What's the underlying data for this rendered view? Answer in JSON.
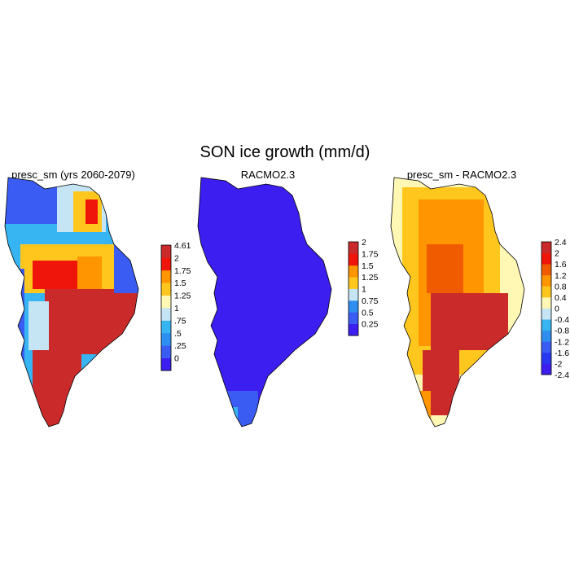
{
  "figure": {
    "title": "SON ice growth (mm/d)"
  },
  "panels": [
    {
      "title": "presc_sm (yrs 2060-2079)",
      "colors": [
        "#3c1ef0",
        "#3b5cf2",
        "#2f8ff0",
        "#37b4f2",
        "#c5e5f5",
        "#fff7b4",
        "#ffc71e",
        "#ff9500",
        "#f0150a",
        "#cb2a2a"
      ],
      "ticks": [
        "0",
        ".25",
        ".5",
        ".75",
        "1",
        "1.25",
        "1.5",
        "1.75",
        "2",
        "4.61"
      ]
    },
    {
      "title": "RACMO2.3",
      "colors": [
        "#3c1ef0",
        "#3b5cf2",
        "#2f8ff0",
        "#c5e5f5",
        "#ffc71e",
        "#ff9500",
        "#f0150a",
        "#cb2a2a"
      ],
      "ticks": [
        "0.25",
        "0.5",
        "0.75",
        "1",
        "1.25",
        "1.5",
        "1.75",
        "2"
      ]
    },
    {
      "title": "presc_sm - RACMO2.3",
      "colors": [
        "#3c1ef0",
        "#2a37f0",
        "#3b5cf2",
        "#2f8ff0",
        "#37b4f2",
        "#c5e5f5",
        "#fff7b4",
        "#ffc71e",
        "#ff9500",
        "#f05b00",
        "#f0150a",
        "#cb2a2a"
      ],
      "ticks": [
        "-2.4",
        "-2",
        "-1.6",
        "-1.2",
        "-0.8",
        "-0.4",
        "0",
        "0.4",
        "0.8",
        "1.2",
        "1.6",
        "2",
        "2.4"
      ]
    }
  ]
}
